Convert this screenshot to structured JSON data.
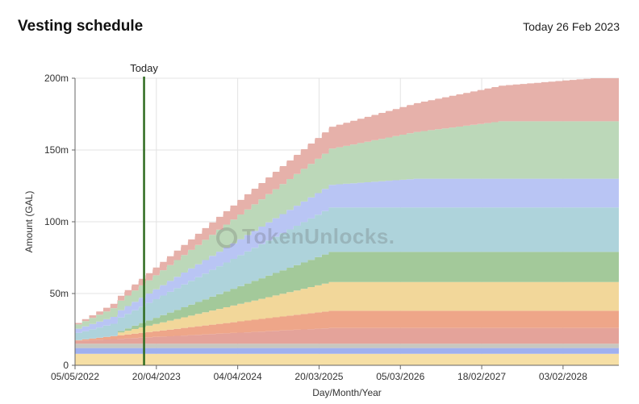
{
  "header": {
    "title": "Vesting schedule",
    "date_label": "Today 26 Feb 2023"
  },
  "watermark": "TokenUnlocks.",
  "chart_data": {
    "type": "area",
    "stacked": true,
    "title": "Vesting schedule",
    "xlabel": "Day/Month/Year",
    "ylabel": "Amount (GAL)",
    "x_ticks": [
      "05/05/2022",
      "20/04/2023",
      "04/04/2024",
      "20/03/2025",
      "05/03/2026",
      "18/02/2027",
      "03/02/2028"
    ],
    "y_ticks": [
      "0",
      "50m",
      "100m",
      "150m",
      "200m"
    ],
    "ylim": [
      0,
      200
    ],
    "xlim": [
      "2022-05-05",
      "2028-09-30"
    ],
    "today_marker": {
      "label": "Today",
      "date": "2023-02-26",
      "color": "#2e6b1f"
    },
    "grid": true,
    "legend": "none",
    "series": [
      {
        "color": "#f6dfa5",
        "start": "2022-05-05",
        "end": "2022-05-05",
        "initial": 8,
        "final": 8,
        "steps": 0
      },
      {
        "color": "#9fb0f0",
        "start": "2022-05-05",
        "end": "2022-05-05",
        "initial": 4,
        "final": 4,
        "steps": 0
      },
      {
        "color": "#c8c8c0",
        "start": "2022-05-05",
        "end": "2022-05-05",
        "initial": 3,
        "final": 3,
        "steps": 0
      },
      {
        "color": "#e4a39a",
        "start": "2022-05-05",
        "end": "2025-05-01",
        "initial": 2,
        "final": 11,
        "steps": 36
      },
      {
        "color": "#eea689",
        "start": "2022-05-05",
        "end": "2025-05-01",
        "initial": 0.5,
        "final": 12,
        "steps": 36
      },
      {
        "color": "#f2d79a",
        "start": "2022-11-05",
        "end": "2025-05-01",
        "initial": 2,
        "final": 20,
        "steps": 30
      },
      {
        "color": "#a3c99a",
        "start": "2022-11-05",
        "end": "2025-05-01",
        "initial": 1,
        "final": 21,
        "steps": 30
      },
      {
        "color": "#aed3db",
        "start": "2022-05-05",
        "end": "2025-05-01",
        "initial": 5,
        "final": 31,
        "steps": 36
      },
      {
        "color": "#b9c5f4",
        "start": "2022-05-05",
        "end": "2026-05-01",
        "initial": 3,
        "final": 20,
        "steps": 48
      },
      {
        "color": "#bcd8b9",
        "start": "2022-05-05",
        "end": "2027-05-01",
        "initial": 3,
        "final": 40,
        "steps": 60
      },
      {
        "color": "#e6b1aa",
        "start": "2022-05-05",
        "end": "2028-06-01",
        "initial": 1,
        "final": 30,
        "steps": 73
      }
    ]
  }
}
